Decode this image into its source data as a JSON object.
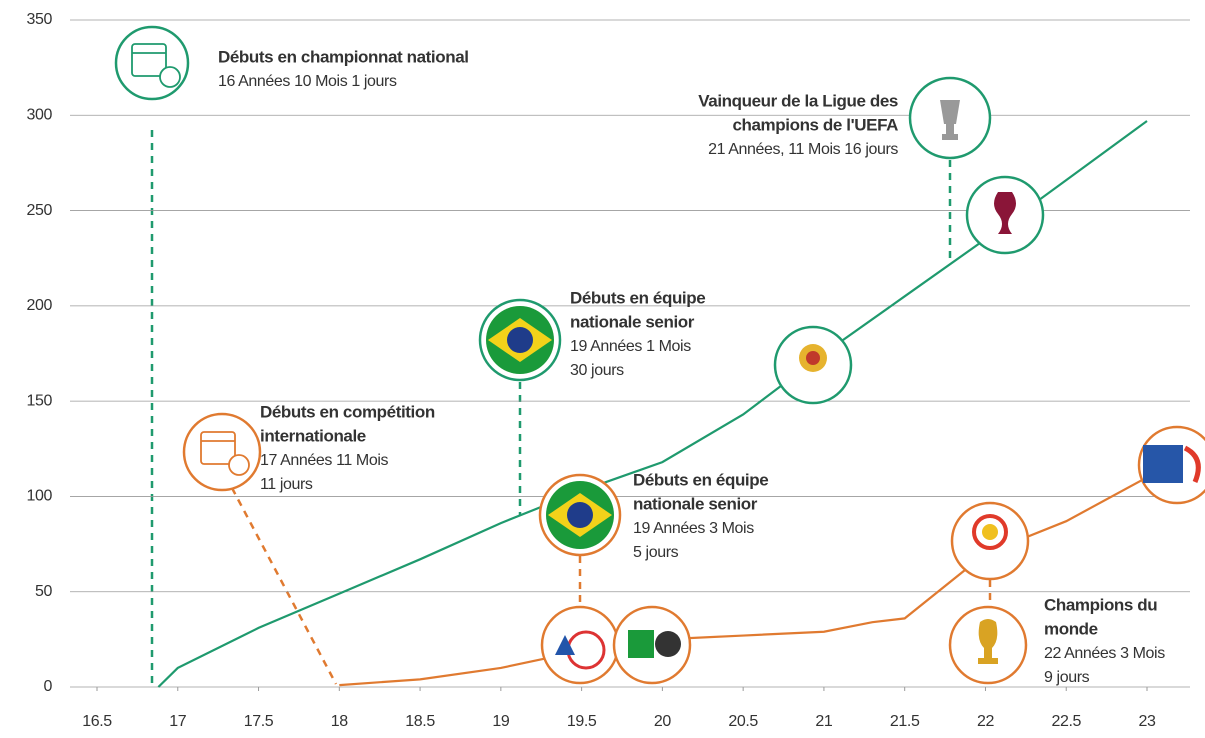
{
  "chart_data": {
    "type": "line",
    "xlim": [
      16.5,
      23
    ],
    "xticks": [
      16.5,
      17,
      17.5,
      18,
      18.5,
      19,
      19.5,
      20,
      20.5,
      21,
      21.5,
      22,
      22.5,
      23
    ],
    "ylim": [
      0,
      350
    ],
    "yticks": [
      0,
      50,
      100,
      150,
      200,
      250,
      300,
      350
    ],
    "grid": true,
    "series": [
      {
        "color": "#1f9a6e",
        "x": [
          16.88,
          17,
          17.5,
          18,
          18.5,
          19,
          19.5,
          20,
          20.5,
          21,
          21.5,
          22,
          22.5,
          23
        ],
        "values": [
          0,
          10,
          31,
          49,
          67,
          86,
          103,
          118,
          143,
          175,
          205,
          235,
          266,
          297
        ]
      },
      {
        "color": "#e07a30",
        "x": [
          18,
          18.5,
          19,
          19.5,
          20,
          20.5,
          21,
          21.3,
          21.5,
          22,
          22.5,
          23
        ],
        "values": [
          1,
          4,
          10,
          19,
          25,
          27,
          29,
          34,
          36,
          70,
          87,
          110
        ]
      }
    ],
    "annotations": [
      {
        "color": "#1f9a6e",
        "title": [
          "Débuts en championnat national"
        ],
        "text": [
          "16 Années 10 Mois 1 jours"
        ]
      },
      {
        "color": "#1f9a6e",
        "title": [
          "Vainqueur de la Ligue des",
          "champions de l'UEFA"
        ],
        "text": [
          "21 Années, 11 Mois 16 jours"
        ]
      },
      {
        "color": "#1f9a6e",
        "title": [
          "Débuts en équipe",
          "nationale senior"
        ],
        "text": [
          "19 Années 1 Mois",
          "30 jours"
        ]
      },
      {
        "color": "#e07a30",
        "title": [
          "Débuts en compétition",
          "internationale"
        ],
        "text": [
          "17 Années 11 Mois",
          "11 jours"
        ]
      },
      {
        "color": "#e07a30",
        "title": [
          "Débuts en équipe",
          "nationale senior"
        ],
        "text": [
          "19 Années 3 Mois",
          "5 jours"
        ]
      },
      {
        "color": "#e07a30",
        "title": [
          "Champions du",
          "monde"
        ],
        "text": [
          "22 Années 3 Mois",
          "9 jours"
        ]
      }
    ]
  }
}
